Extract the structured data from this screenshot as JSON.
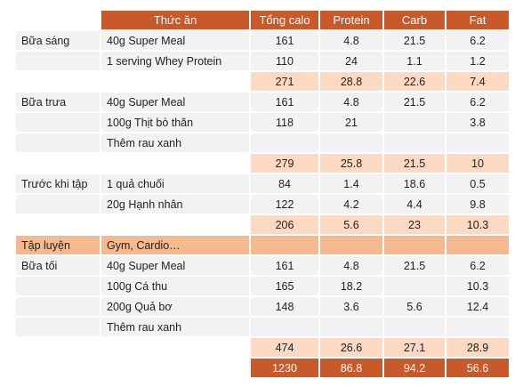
{
  "header": {
    "food": "Thức ăn",
    "calories": "Tổng calo",
    "protein": "Protein",
    "carb": "Carb",
    "fat": "Fat"
  },
  "rows": [
    {
      "kind": "item",
      "meal": "Bữa sáng",
      "food": "40g Super Meal",
      "cal": "161",
      "protein": "4.8",
      "carb": "21.5",
      "fat": "6.2"
    },
    {
      "kind": "item",
      "meal": "",
      "food": "1 serving Whey Protein",
      "cal": "110",
      "protein": "24",
      "carb": "1.1",
      "fat": "1.2"
    },
    {
      "kind": "sub",
      "meal": "",
      "food": "",
      "cal": "271",
      "protein": "28.8",
      "carb": "22.6",
      "fat": "7.4"
    },
    {
      "kind": "item",
      "meal": "Bữa trưa",
      "food": "40g Super Meal",
      "cal": "161",
      "protein": "4.8",
      "carb": "21.5",
      "fat": "6.2"
    },
    {
      "kind": "item",
      "meal": "",
      "food": "100g Thịt bò thăn",
      "cal": "118",
      "protein": "21",
      "carb": "",
      "fat": "3.8"
    },
    {
      "kind": "item",
      "meal": "",
      "food": "Thêm rau xanh",
      "cal": "",
      "protein": "",
      "carb": "",
      "fat": ""
    },
    {
      "kind": "sub",
      "meal": "",
      "food": "",
      "cal": "279",
      "protein": "25.8",
      "carb": "21.5",
      "fat": "10"
    },
    {
      "kind": "item",
      "meal": "Trước khi tập",
      "food": "1 quả chuối",
      "cal": "84",
      "protein": "1.4",
      "carb": "18.6",
      "fat": "0.5"
    },
    {
      "kind": "item",
      "meal": "",
      "food": "20g Hạnh nhân",
      "cal": "122",
      "protein": "4.2",
      "carb": "4.4",
      "fat": "9.8"
    },
    {
      "kind": "sub",
      "meal": "",
      "food": "",
      "cal": "206",
      "protein": "5.6",
      "carb": "23",
      "fat": "10.3"
    },
    {
      "kind": "workout",
      "meal": "Tập luyện",
      "food": "Gym, Cardio…",
      "cal": "",
      "protein": "",
      "carb": "",
      "fat": ""
    },
    {
      "kind": "item",
      "meal": "Bữa tối",
      "food": "40g Super Meal",
      "cal": "161",
      "protein": "4.8",
      "carb": "21.5",
      "fat": "6.2"
    },
    {
      "kind": "item",
      "meal": "",
      "food": "100g Cá thu",
      "cal": "165",
      "protein": "18.2",
      "carb": "",
      "fat": "10.3"
    },
    {
      "kind": "item",
      "meal": "",
      "food": "200g Quả bơ",
      "cal": "148",
      "protein": "3.6",
      "carb": "5.6",
      "fat": "12.4"
    },
    {
      "kind": "item",
      "meal": "",
      "food": "Thêm rau xanh",
      "cal": "",
      "protein": "",
      "carb": "",
      "fat": ""
    },
    {
      "kind": "sub",
      "meal": "",
      "food": "",
      "cal": "474",
      "protein": "26.6",
      "carb": "27.1",
      "fat": "28.9"
    },
    {
      "kind": "total",
      "meal": "",
      "food": "",
      "cal": "1230",
      "protein": "86.8",
      "carb": "94.2",
      "fat": "56.6"
    }
  ],
  "colors": {
    "header": "#c8592b",
    "subtotal": "#fbd9c2",
    "workout": "#f4b98f",
    "row": "#f2f2f2"
  }
}
